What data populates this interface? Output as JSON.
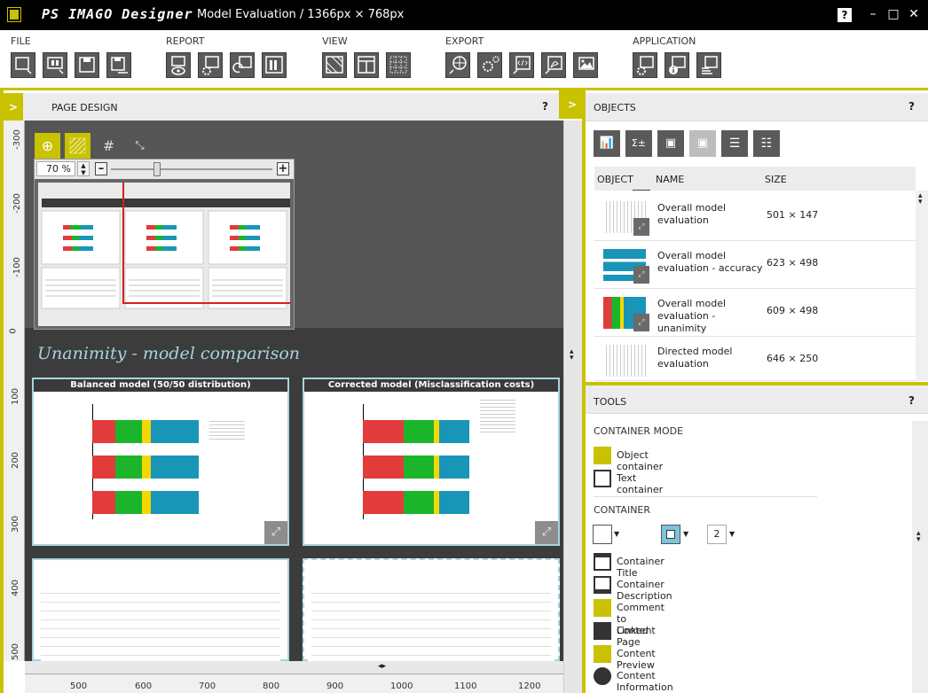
{
  "titlebar": {
    "app_name": "PS IMAGO Designer",
    "title": "Model Evaluation / 1366px × 768px",
    "help": "?",
    "minimize": "–",
    "maximize": "□",
    "close": "✕"
  },
  "ribbon": {
    "groups": [
      "FILE",
      "REPORT",
      "VIEW",
      "EXPORT",
      "APPLICATION"
    ]
  },
  "page_design": {
    "title": "PAGE DESIGN",
    "help": "?",
    "toggle": ">",
    "zoom_value": "70 %",
    "zoom_minus": "–",
    "zoom_plus": "+",
    "canvas_title": "Unanimity - model comparison",
    "card1_title": "Balanced model (50/50 distribution)",
    "card2_title": "Corrected model (Misclassification costs)"
  },
  "rulers": {
    "vertical": [
      "-300",
      "-200",
      "-100",
      "0",
      "100",
      "200",
      "300",
      "400",
      "500"
    ],
    "horizontal": [
      "500",
      "600",
      "700",
      "800",
      "900",
      "1000",
      "1100",
      "1200"
    ]
  },
  "objects": {
    "title": "OBJECTS",
    "help": "?",
    "toggle": ">",
    "columns": [
      "OBJECT",
      "NAME",
      "SIZE"
    ],
    "rows": [
      {
        "name": "Overall model evaluation",
        "size": "501 × 147"
      },
      {
        "name": "Overall model evaluation - accuracy",
        "size": "623 × 498"
      },
      {
        "name": "Overall model evaluation - unanimity",
        "size": "609 × 498"
      },
      {
        "name": "Directed model evaluation",
        "size": "646 × 250"
      }
    ]
  },
  "tools": {
    "title": "TOOLS",
    "help": "?",
    "container_mode_label": "CONTAINER MODE",
    "object_container": "Object container",
    "text_container": "Text container",
    "container_label": "CONTAINER",
    "dropdown_value": "2",
    "items": [
      "Container Title",
      "Container Description",
      "Comment to Content",
      "Linked Page",
      "Content Preview",
      "Content Information"
    ]
  },
  "colors": {
    "accent": "#c9c200",
    "canvas": "#3c3c3c",
    "card_border": "#a8d4e0",
    "bar_red": "#e23b3b",
    "bar_green": "#1bb52b",
    "bar_yellow": "#f2d800",
    "bar_blue": "#1995b8"
  }
}
